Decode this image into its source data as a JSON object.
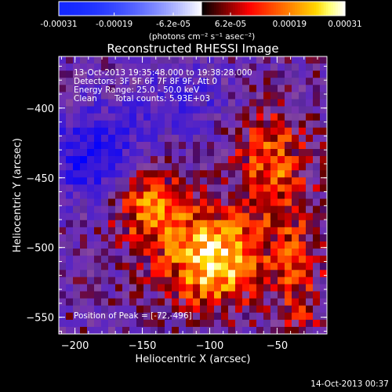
{
  "chart_data": {
    "type": "heatmap",
    "title": "Reconstructed RHESSI Image",
    "xlabel": "Heliocentric X (arcsec)",
    "ylabel": "Heliocentric Y (arcsec)",
    "xlim": [
      -212,
      -13
    ],
    "ylim": [
      -562,
      -363
    ],
    "x_ticks": [
      -200,
      -150,
      -100,
      -50
    ],
    "y_ticks": [
      -550,
      -500,
      -450,
      -400
    ],
    "colorbar": {
      "min": -0.00031,
      "max": 0.00031,
      "tick_values": [
        -0.00031,
        -0.00019,
        -6.2e-05,
        6.2e-05,
        0.00019,
        0.00031
      ],
      "tick_labels": [
        "-0.00031",
        "-0.00019",
        "-6.2e-05",
        "6.2e-05",
        "0.00019",
        "0.00031"
      ],
      "unit_label": "(photons cm⁻² s⁻¹ asec⁻²)",
      "colormap": "RHESSI blue-white (negative) to black-red-yellow-white (positive)"
    },
    "peak": {
      "x": -72,
      "y": -496
    },
    "grid": false
  },
  "annotations": {
    "time_range": "13-Oct-2013 19:35:48.000 to 19:38:28.000",
    "detectors": "Detectors: 3F 5F 6F 7F 8F 9F, Att 0",
    "energy": "Energy Range: 25.0 - 50.0 keV",
    "clean": "Clean",
    "total_counts": "Total counts: 5.93E+03",
    "peak_label": "Position of Peak = [-72,-496]"
  },
  "footer": {
    "timestamp": "14-Oct-2013 00:37"
  },
  "colors": {
    "background": "#000000",
    "text": "#ffffff"
  }
}
